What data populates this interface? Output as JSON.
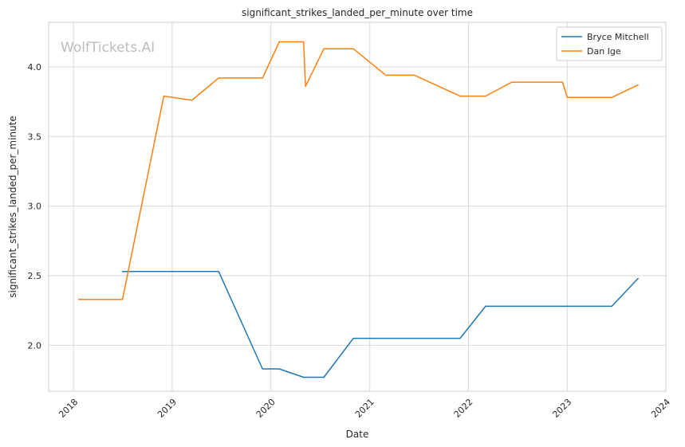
{
  "chart_data": {
    "type": "line",
    "title": "significant_strikes_landed_per_minute over time",
    "xlabel": "Date",
    "ylabel": "significant_strikes_landed_per_minute",
    "watermark": "WolfTickets.AI",
    "xlim": [
      "2017-10-01",
      "2024-01-01"
    ],
    "ylim": [
      1.67,
      4.32
    ],
    "x_ticks": [
      "2018",
      "2019",
      "2020",
      "2021",
      "2022",
      "2023",
      "2024"
    ],
    "y_ticks": [
      "2.0",
      "2.5",
      "3.0",
      "3.5",
      "4.0"
    ],
    "grid": true,
    "legend_position": "top-right",
    "series": [
      {
        "name": "Bryce Mitchell",
        "color": "#1f77b4",
        "points": [
          [
            "2018-07-01",
            2.53
          ],
          [
            "2019-06-22",
            2.53
          ],
          [
            "2019-12-01",
            1.83
          ],
          [
            "2020-02-01",
            1.83
          ],
          [
            "2020-05-01",
            1.77
          ],
          [
            "2020-07-15",
            1.77
          ],
          [
            "2020-11-01",
            2.05
          ],
          [
            "2021-12-01",
            2.05
          ],
          [
            "2022-03-05",
            2.28
          ],
          [
            "2023-01-01",
            2.28
          ],
          [
            "2023-06-15",
            2.28
          ],
          [
            "2023-09-20",
            2.48
          ]
        ]
      },
      {
        "name": "Dan Ige",
        "color": "#ff7f0e",
        "points": [
          [
            "2018-01-20",
            2.33
          ],
          [
            "2018-07-01",
            2.33
          ],
          [
            "2018-12-01",
            3.79
          ],
          [
            "2019-03-15",
            3.76
          ],
          [
            "2019-06-22",
            3.92
          ],
          [
            "2019-12-01",
            3.92
          ],
          [
            "2020-02-01",
            4.18
          ],
          [
            "2020-05-01",
            4.18
          ],
          [
            "2020-05-08",
            3.86
          ],
          [
            "2020-07-15",
            4.13
          ],
          [
            "2020-11-01",
            4.13
          ],
          [
            "2021-03-01",
            3.94
          ],
          [
            "2021-06-15",
            3.94
          ],
          [
            "2021-12-01",
            3.79
          ],
          [
            "2022-03-05",
            3.79
          ],
          [
            "2022-06-10",
            3.89
          ],
          [
            "2022-12-15",
            3.89
          ],
          [
            "2023-01-01",
            3.78
          ],
          [
            "2023-06-15",
            3.78
          ],
          [
            "2023-09-20",
            3.87
          ]
        ]
      }
    ]
  }
}
